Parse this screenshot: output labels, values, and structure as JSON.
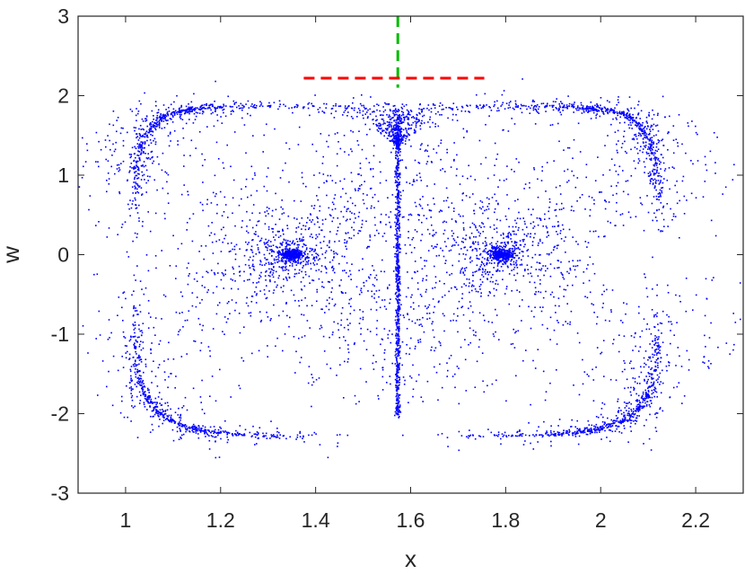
{
  "chart_data": {
    "type": "scatter",
    "title": "",
    "xlabel": "x",
    "ylabel": "w",
    "xlim": [
      0.9,
      2.3
    ],
    "ylim": [
      -3,
      3
    ],
    "xticks": [
      1,
      1.2,
      1.4,
      1.6,
      1.8,
      2,
      2.2
    ],
    "xtick_labels": [
      "1",
      "1.2",
      "1.4",
      "1.6",
      "1.8",
      "2",
      "2.2"
    ],
    "yticks": [
      3,
      2,
      1,
      0,
      -1,
      -2,
      -3
    ],
    "ytick_labels": [
      "3",
      "2",
      "1",
      "0",
      "-1",
      "-2",
      "-3"
    ],
    "grid": false,
    "box": true,
    "point_color": "#0000ff",
    "centers": [
      {
        "x": 1.35,
        "y": 0
      },
      {
        "x": 1.79,
        "y": 0
      }
    ],
    "separatrix_x": 1.573,
    "boundary": {
      "x_left": 1.02,
      "x_right": 2.12,
      "y_top": 1.95,
      "y_bottom": -2.28
    },
    "overlays": [
      {
        "type": "vline",
        "x": 1.573,
        "y_range": [
          2.1,
          3.0
        ],
        "color": "#00bb00",
        "style": "dashed"
      },
      {
        "type": "hline",
        "y": 2.22,
        "x_range": [
          1.375,
          1.755
        ],
        "color": "#ff0000",
        "style": "dashed"
      }
    ]
  }
}
